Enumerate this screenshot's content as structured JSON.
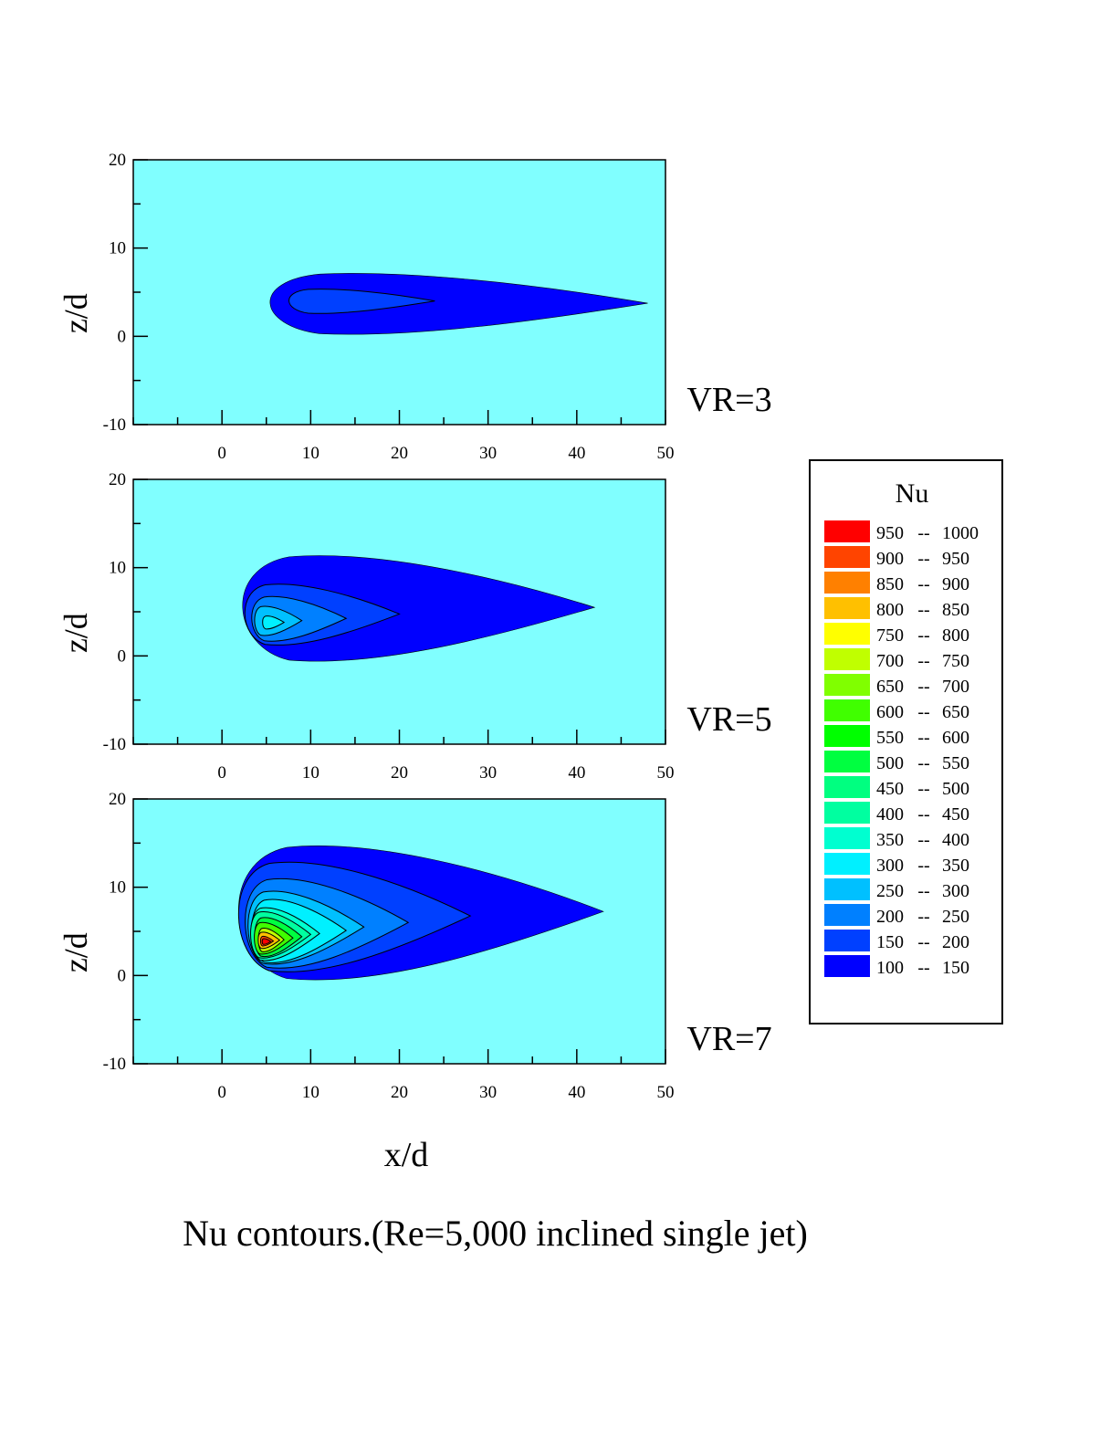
{
  "caption": "Nu contours.(Re=5,000 inclined single jet)",
  "xlabel": "x/d",
  "colors": {
    "background_field": "#80ffff",
    "contour_line": "#000000"
  },
  "legend": {
    "title": "Nu",
    "levels": [
      {
        "low": "950",
        "high": "1000",
        "color": "#ff0000"
      },
      {
        "low": "900",
        "high": "950",
        "color": "#ff4400"
      },
      {
        "low": "850",
        "high": "900",
        "color": "#ff8000"
      },
      {
        "low": "800",
        "high": "850",
        "color": "#ffc000"
      },
      {
        "low": "750",
        "high": "800",
        "color": "#ffff00"
      },
      {
        "low": "700",
        "high": "750",
        "color": "#c0ff00"
      },
      {
        "low": "650",
        "high": "700",
        "color": "#80ff00"
      },
      {
        "low": "600",
        "high": "650",
        "color": "#40ff00"
      },
      {
        "low": "550",
        "high": "600",
        "color": "#00ff00"
      },
      {
        "low": "500",
        "high": "550",
        "color": "#00ff40"
      },
      {
        "low": "450",
        "high": "500",
        "color": "#00ff80"
      },
      {
        "low": "400",
        "high": "450",
        "color": "#00ffa0"
      },
      {
        "low": "350",
        "high": "400",
        "color": "#00ffd0"
      },
      {
        "low": "300",
        "high": "350",
        "color": "#00f0ff"
      },
      {
        "low": "250",
        "high": "300",
        "color": "#00c0ff"
      },
      {
        "low": "200",
        "high": "250",
        "color": "#0080ff"
      },
      {
        "low": "150",
        "high": "200",
        "color": "#0040ff"
      },
      {
        "low": "100",
        "high": "150",
        "color": "#0000ff"
      }
    ]
  },
  "chart_data": [
    {
      "type": "heatmap",
      "panel_label": "VR=3",
      "xlabel": "",
      "ylabel": "z/d",
      "xlim": [
        -10,
        50
      ],
      "ylim": [
        -10,
        20
      ],
      "xticks": [
        0,
        10,
        20,
        30,
        40,
        50
      ],
      "yticks": [
        -10,
        0,
        10,
        20
      ],
      "peak_nu_range": "150-200",
      "regions": [
        {
          "level": "100-150",
          "x_range": [
            4,
            48
          ],
          "z_range": [
            0,
            7.5
          ]
        },
        {
          "level": "150-200",
          "x_range": [
            7,
            24
          ],
          "z_range": [
            2.5,
            5.5
          ]
        }
      ]
    },
    {
      "type": "heatmap",
      "panel_label": "VR=5",
      "xlabel": "",
      "ylabel": "z/d",
      "xlim": [
        -10,
        50
      ],
      "ylim": [
        -10,
        20
      ],
      "xticks": [
        0,
        10,
        20,
        30,
        40,
        50
      ],
      "yticks": [
        -10,
        0,
        10,
        20
      ],
      "peak_nu_range": "300-350",
      "peak_location": {
        "x": 5.5,
        "z": 3.8
      },
      "regions": [
        {
          "level": "100-150",
          "x_range": [
            1,
            42
          ],
          "z_range": [
            -1,
            12
          ]
        },
        {
          "level": "150-200",
          "x_range": [
            2,
            20
          ],
          "z_range": [
            1,
            8.5
          ]
        },
        {
          "level": "200-250",
          "x_range": [
            3,
            14
          ],
          "z_range": [
            1.5,
            7
          ]
        },
        {
          "level": "250-300",
          "x_range": [
            3.5,
            9
          ],
          "z_range": [
            2.2,
            5.8
          ]
        },
        {
          "level": "300-350",
          "x_range": [
            4.5,
            7
          ],
          "z_range": [
            3,
            4.6
          ]
        }
      ]
    },
    {
      "type": "heatmap",
      "panel_label": "VR=7",
      "xlabel": "x/d",
      "ylabel": "z/d",
      "xlim": [
        -10,
        50
      ],
      "ylim": [
        -10,
        20
      ],
      "xticks": [
        0,
        10,
        20,
        30,
        40,
        50
      ],
      "yticks": [
        -10,
        0,
        10,
        20
      ],
      "peak_nu_range": "950-1000",
      "peak_location": {
        "x": 5,
        "z": 3.8
      },
      "regions": [
        {
          "level": "100-150",
          "x_range": [
            0.5,
            43
          ],
          "z_range": [
            -1,
            15.5
          ]
        },
        {
          "level": "150-200",
          "x_range": [
            1,
            28
          ],
          "z_range": [
            0,
            13.5
          ]
        },
        {
          "level": "200-250",
          "x_range": [
            2,
            21
          ],
          "z_range": [
            0.5,
            11.5
          ]
        },
        {
          "level": "250-300",
          "x_range": [
            2.5,
            16
          ],
          "z_range": [
            1,
            10
          ]
        },
        {
          "level": "300-350",
          "x_range": [
            3,
            14
          ],
          "z_range": [
            1.2,
            9
          ]
        },
        {
          "level": "350-400",
          "x_range": [
            3,
            11
          ],
          "z_range": [
            1.5,
            8
          ]
        },
        {
          "level": "400-450",
          "x_range": [
            3,
            10
          ],
          "z_range": [
            1.8,
            7.5
          ]
        },
        {
          "level": "500-550",
          "x_range": [
            3.5,
            9
          ],
          "z_range": [
            2,
            6.8
          ]
        },
        {
          "level": "600-650",
          "x_range": [
            3.5,
            8
          ],
          "z_range": [
            2.3,
            6.2
          ]
        },
        {
          "level": "700-750",
          "x_range": [
            4,
            7
          ],
          "z_range": [
            2.6,
            5.5
          ]
        },
        {
          "level": "800-850",
          "x_range": [
            4,
            6.5
          ],
          "z_range": [
            3,
            5
          ]
        },
        {
          "level": "900-950",
          "x_range": [
            4.3,
            5.8
          ],
          "z_range": [
            3.3,
            4.5
          ]
        },
        {
          "level": "950-1000",
          "x_range": [
            4.5,
            5.5
          ],
          "z_range": [
            3.5,
            4.2
          ]
        }
      ]
    }
  ]
}
